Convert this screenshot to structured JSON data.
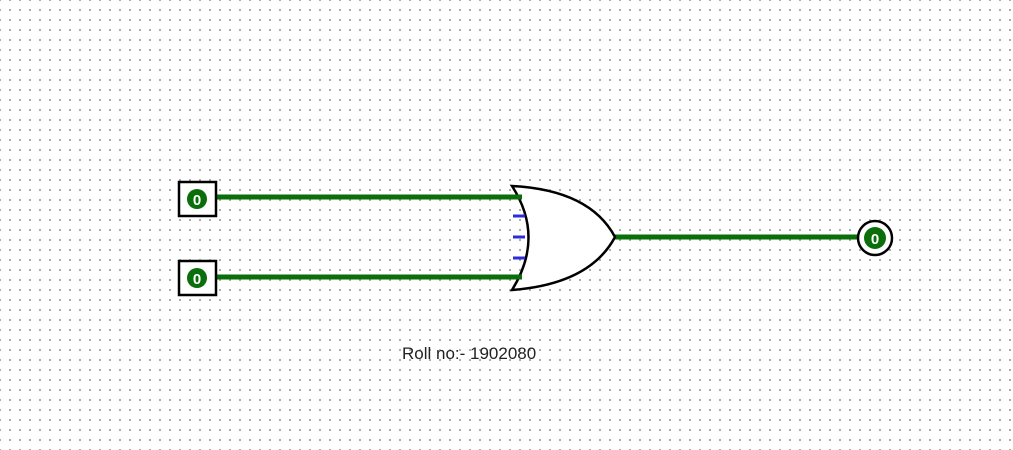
{
  "circuit": {
    "colors": {
      "wire": "#0a6e0a",
      "gate_outline": "#000000",
      "inverter_mark": "#2c2cd8",
      "pin_fill": "#0a6e0a",
      "pin_text": "#ffffff"
    },
    "gate": {
      "type": "OR",
      "input_count": 2
    },
    "inputs": [
      {
        "value": "0"
      },
      {
        "value": "0"
      }
    ],
    "output": {
      "value": "0"
    }
  },
  "label": {
    "text": "Roll no:- 1902080"
  }
}
